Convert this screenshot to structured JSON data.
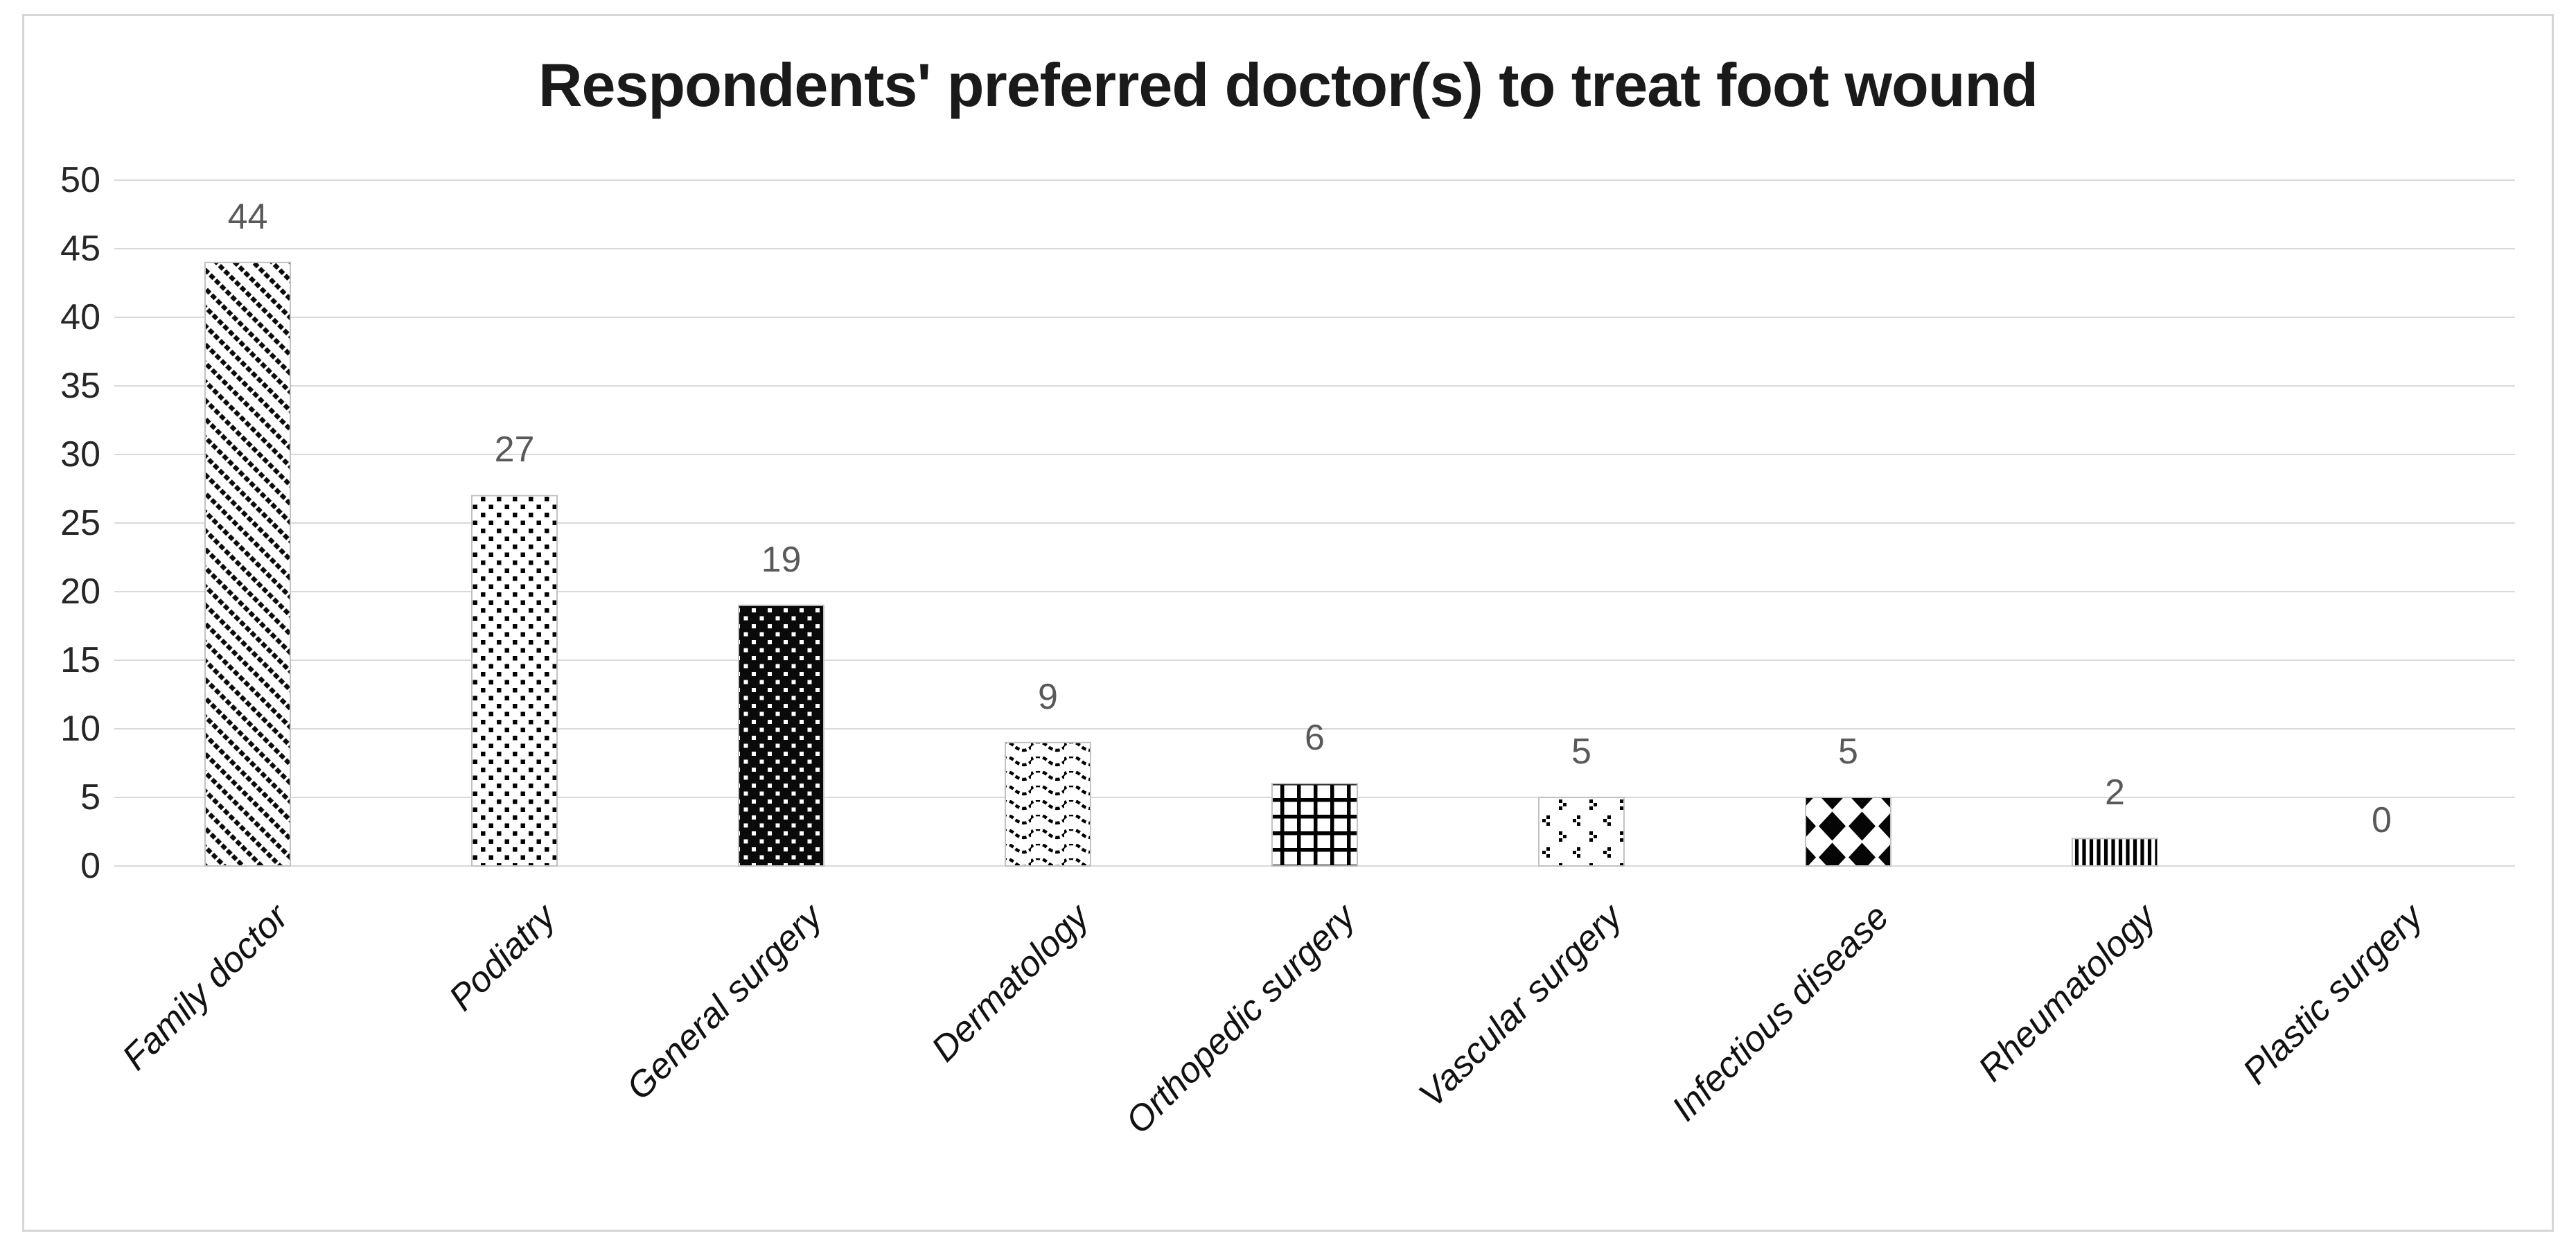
{
  "chart_data": {
    "type": "bar",
    "title": "Respondents' preferred doctor(s) to treat foot wound",
    "categories": [
      "Family doctor",
      "Podiatry",
      "General surgery",
      "Dermatology",
      "Orthopedic surgery",
      "Vascular surgery",
      "Infectious disease",
      "Rheumatology",
      "Plastic surgery"
    ],
    "values": [
      44,
      27,
      19,
      9,
      6,
      5,
      5,
      2,
      0
    ],
    "data_labels": [
      "44",
      "27",
      "19",
      "9",
      "6",
      "5",
      "5",
      "2",
      "0"
    ],
    "patterns": [
      "diagonal-stripes",
      "dots",
      "black-white-dots",
      "waves",
      "grid",
      "dot-clusters",
      "diamonds",
      "vertical-stripes",
      "none"
    ],
    "xlabel": "",
    "ylabel": "",
    "ylim": [
      0,
      50
    ],
    "yticks": [
      0,
      5,
      10,
      15,
      20,
      25,
      30,
      35,
      40,
      45,
      50
    ],
    "grid": true,
    "legend_position": "none",
    "x_tick_label_rotation_deg": 45,
    "bar_color_scheme": "black-and-white pattern fills"
  },
  "colors": {
    "background": "#ffffff",
    "frame_border": "#d6d6d6",
    "gridline": "#d9d9d9",
    "bar_outline": "#c2c2c2",
    "bar_pattern_ink": "#000000",
    "title_text": "#1a1a1a",
    "tick_label_text": "#262626",
    "value_label_text": "#595959",
    "category_label_text": "#111111"
  }
}
